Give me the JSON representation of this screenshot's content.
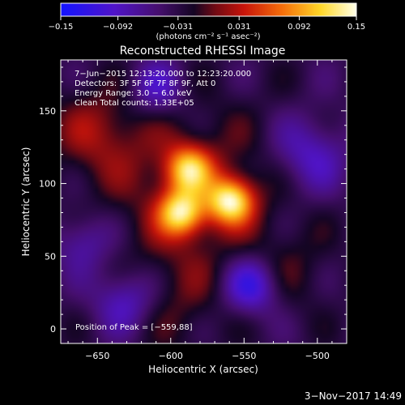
{
  "chart_data": {
    "type": "heatmap",
    "title": "Reconstructed RHESSI Image",
    "xlabel": "Heliocentric X (arcsec)",
    "ylabel": "Heliocentric Y (arcsec)",
    "xlim": [
      -675,
      -480
    ],
    "ylim": [
      -10,
      185
    ],
    "x_ticks": [
      -650,
      -600,
      -550,
      -500
    ],
    "x_tick_labels": [
      "−650",
      "−600",
      "−550",
      "−500"
    ],
    "y_ticks": [
      0,
      50,
      100,
      150
    ],
    "y_tick_labels": [
      "0",
      "50",
      "100",
      "150"
    ],
    "colorbar": {
      "range": [
        -0.15,
        0.15
      ],
      "ticks": [
        -0.15,
        -0.092,
        -0.031,
        0.031,
        0.092,
        0.15
      ],
      "tick_labels": [
        "−0.15",
        "−0.092",
        "−0.031",
        "0.031",
        "0.092",
        "0.15"
      ],
      "units": "(photons cm⁻² s⁻¹ asec⁻²)"
    },
    "sources": [
      {
        "x": -559,
        "y": 88,
        "peak": 0.15
      },
      {
        "x": -593,
        "y": 80,
        "peak": 0.135
      },
      {
        "x": -588,
        "y": 110,
        "peak": 0.12
      }
    ],
    "annotations": [
      "7−Jun−2015 12:13:20.000 to 12:23:20.000",
      "Detectors: 3F 5F 6F 7F 8F 9F, Att 0",
      "Energy Range: 3.0 − 6.0 keV",
      "Clean     Total counts: 1.33E+05"
    ],
    "peak_label": "Position of Peak = [−559,88]",
    "grid": false
  },
  "footer": {
    "timestamp": "3−Nov−2017 14:49"
  }
}
